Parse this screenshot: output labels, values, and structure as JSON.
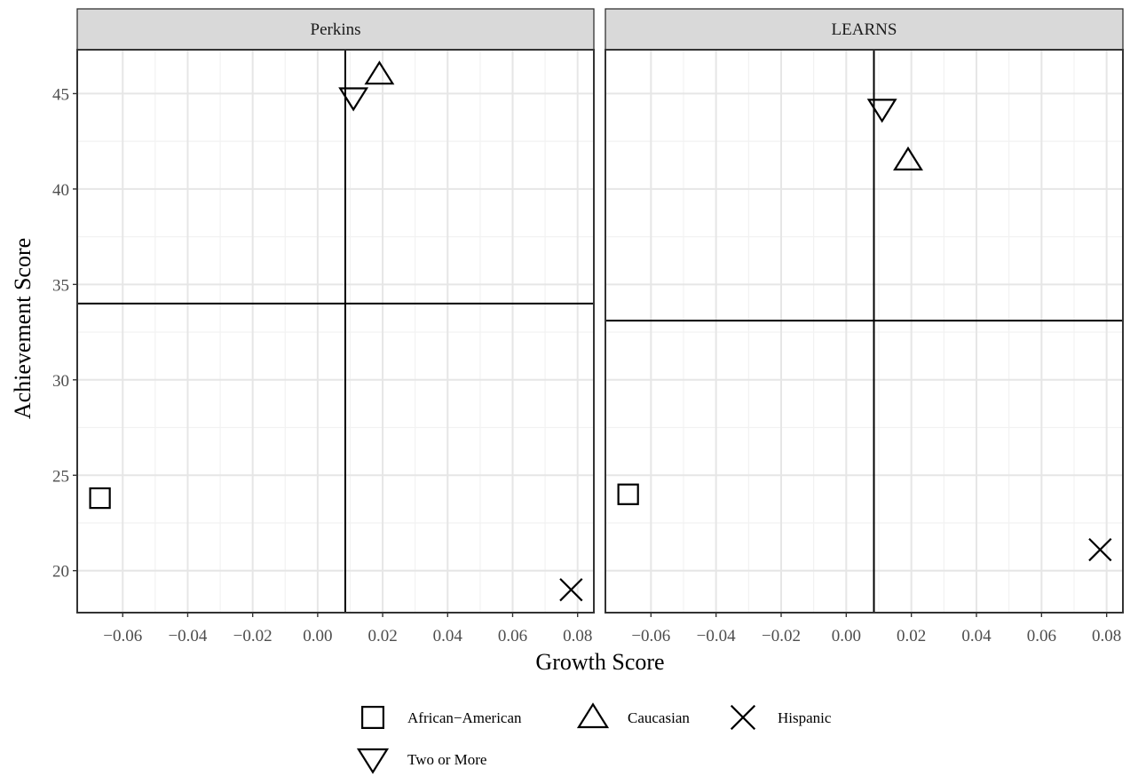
{
  "chart_data": {
    "type": "scatter",
    "xlabel": "Growth Score",
    "ylabel": "Achievement Score",
    "xlim": [
      -0.074,
      0.085
    ],
    "ylim": [
      17.8,
      47.3
    ],
    "x_ticks": [
      -0.06,
      -0.04,
      -0.02,
      0.0,
      0.02,
      0.04,
      0.06,
      0.08
    ],
    "x_tick_labels": [
      "−0.06",
      "−0.04",
      "−0.02",
      "0.00",
      "0.02",
      "0.04",
      "0.06",
      "0.08"
    ],
    "y_ticks": [
      20,
      25,
      30,
      35,
      40,
      45
    ],
    "y_tick_labels": [
      "20",
      "25",
      "30",
      "35",
      "40",
      "45"
    ],
    "grid": true,
    "legend_position": "bottom",
    "series": [
      {
        "name": "African−American",
        "shape": "square"
      },
      {
        "name": "Caucasian",
        "shape": "triangle-up"
      },
      {
        "name": "Hispanic",
        "shape": "cross"
      },
      {
        "name": "Two or More",
        "shape": "triangle-down"
      }
    ],
    "panels": [
      {
        "title": "Perkins",
        "vline": 0.0085,
        "hline": 34.0,
        "points": [
          {
            "series": "African−American",
            "x": -0.067,
            "y": 23.8
          },
          {
            "series": "Caucasian",
            "x": 0.019,
            "y": 46.0
          },
          {
            "series": "Hispanic",
            "x": 0.078,
            "y": 19.0
          },
          {
            "series": "Two or More",
            "x": 0.011,
            "y": 44.8
          }
        ]
      },
      {
        "title": "LEARNS",
        "vline": 0.0085,
        "hline": 33.1,
        "points": [
          {
            "series": "African−American",
            "x": -0.067,
            "y": 24.0
          },
          {
            "series": "Caucasian",
            "x": 0.019,
            "y": 41.5
          },
          {
            "series": "Hispanic",
            "x": 0.078,
            "y": 21.1
          },
          {
            "series": "Two or More",
            "x": 0.011,
            "y": 44.2
          }
        ]
      }
    ]
  }
}
